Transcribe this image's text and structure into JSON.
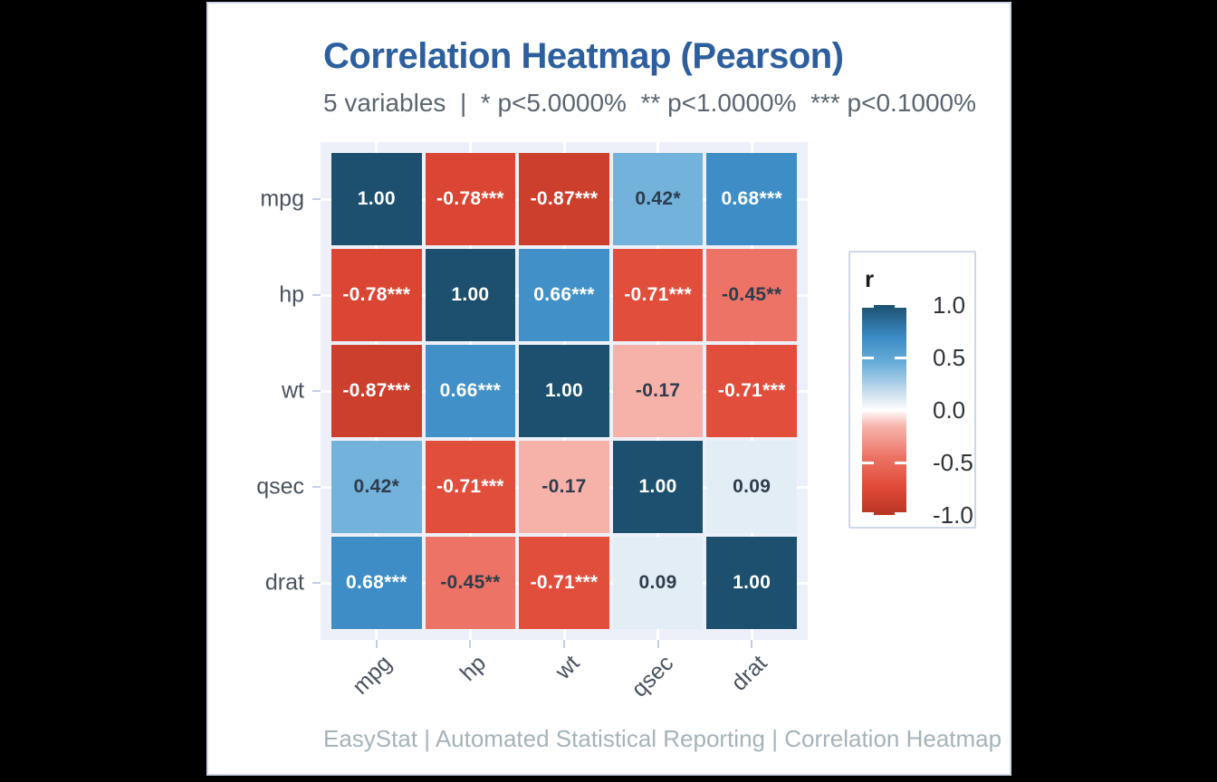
{
  "page": {
    "background": "#000000",
    "card_background": "#ffffff",
    "card_border": "#ced7e8"
  },
  "chart_data": {
    "type": "heatmap",
    "title": "Correlation Heatmap (Pearson)",
    "subtitle": "5 variables  |  * p<5.0000%  ** p<1.0000%  *** p<0.1000%",
    "caption": "EasyStat | Automated Statistical Reporting | Correlation Heatmap",
    "variables": [
      "mpg",
      "hp",
      "wt",
      "qsec",
      "drat"
    ],
    "x_tick_labels": [
      "mpg",
      "hp",
      "wt",
      "qsec",
      "drat"
    ],
    "y_tick_labels": [
      "mpg",
      "hp",
      "wt",
      "qsec",
      "drat"
    ],
    "matrix": [
      [
        1.0,
        -0.78,
        -0.87,
        0.42,
        0.68
      ],
      [
        -0.78,
        1.0,
        0.66,
        -0.71,
        -0.45
      ],
      [
        -0.87,
        0.66,
        1.0,
        -0.17,
        -0.71
      ],
      [
        0.42,
        -0.71,
        -0.17,
        1.0,
        0.09
      ],
      [
        0.68,
        -0.45,
        -0.71,
        0.09,
        1.0
      ]
    ],
    "cell_labels": [
      [
        "1.00",
        "-0.78***",
        "-0.87***",
        "0.42*",
        "0.68***"
      ],
      [
        "-0.78***",
        "1.00",
        "0.66***",
        "-0.71***",
        "-0.45**"
      ],
      [
        "-0.87***",
        "0.66***",
        "1.00",
        "-0.17",
        "-0.71***"
      ],
      [
        "0.42*",
        "-0.71***",
        "-0.17",
        "1.00",
        "0.09"
      ],
      [
        "0.68***",
        "-0.45**",
        "-0.71***",
        "0.09",
        "1.00"
      ]
    ],
    "legend": {
      "title": "r",
      "tick_labels": [
        "1.0",
        "0.5",
        "0.0",
        "-0.5",
        "-1.0"
      ],
      "tick_values": [
        1,
        0.5,
        0,
        -0.5,
        -1
      ],
      "range": [
        -1,
        1
      ],
      "position": "right"
    },
    "colors": {
      "title_text": "#2d5f9e",
      "subtitle_text": "#5b6570",
      "caption_text": "#a4b3ba",
      "axis_text": "#49525f",
      "tick_mark": "#c4cee4",
      "panel_background": "#edf0f8",
      "gridline": "#ffffff",
      "cell_text_light": "#ffffff",
      "cell_text_dark": "#2e3c4c",
      "scale_stops": [
        {
          "value": 1.0,
          "color": "#1d4f6e"
        },
        {
          "value": 0.7,
          "color": "#3a8ac4"
        },
        {
          "value": 0.45,
          "color": "#68add9"
        },
        {
          "value": 0.15,
          "color": "#cfe1ef"
        },
        {
          "value": 0.0,
          "color": "#ffffff"
        },
        {
          "value": -0.15,
          "color": "#f7b6ad"
        },
        {
          "value": -0.45,
          "color": "#ec7365"
        },
        {
          "value": -0.75,
          "color": "#e04836"
        },
        {
          "value": -1.0,
          "color": "#b73524"
        }
      ]
    }
  }
}
